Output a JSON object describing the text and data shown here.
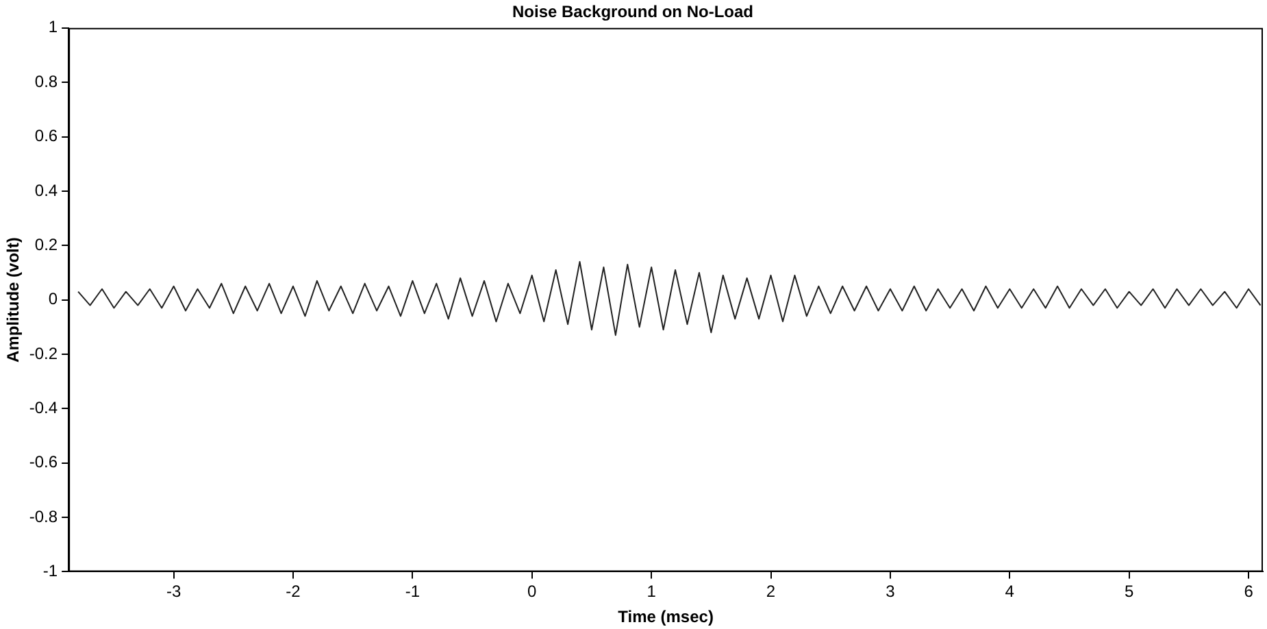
{
  "chart_data": {
    "type": "line",
    "title": "Noise Background on No-Load",
    "xlabel": "Time (msec)",
    "ylabel": "Amplitude (volt)",
    "marker": "none",
    "legend": false,
    "grid": false,
    "xlim": [
      -3.88,
      6.12
    ],
    "xticks": [
      -3,
      -2,
      -1,
      0,
      1,
      2,
      3,
      4,
      5,
      6
    ],
    "ylim": [
      -1,
      1
    ],
    "yticks": [
      -1,
      -0.8,
      -0.6,
      -0.4,
      -0.2,
      0,
      0.2,
      0.4,
      0.6,
      0.8,
      1
    ],
    "x": [
      -3.8,
      -3.7,
      -3.6,
      -3.5,
      -3.4,
      -3.3,
      -3.2,
      -3.1,
      -3.0,
      -2.9,
      -2.8,
      -2.7,
      -2.6,
      -2.5,
      -2.4,
      -2.3,
      -2.2,
      -2.1,
      -2.0,
      -1.9,
      -1.8,
      -1.7,
      -1.6,
      -1.5,
      -1.4,
      -1.3,
      -1.2,
      -1.1,
      -1.0,
      -0.9,
      -0.8,
      -0.7,
      -0.6,
      -0.5,
      -0.4,
      -0.3,
      -0.2,
      -0.1,
      0.0,
      0.1,
      0.2,
      0.3,
      0.4,
      0.5,
      0.6,
      0.7,
      0.8,
      0.9,
      1.0,
      1.1,
      1.2,
      1.3,
      1.4,
      1.5,
      1.6,
      1.7,
      1.8,
      1.9,
      2.0,
      2.1,
      2.2,
      2.3,
      2.4,
      2.5,
      2.6,
      2.7,
      2.8,
      2.9,
      3.0,
      3.1,
      3.2,
      3.3,
      3.4,
      3.5,
      3.6,
      3.7,
      3.8,
      3.9,
      4.0,
      4.1,
      4.2,
      4.3,
      4.4,
      4.5,
      4.6,
      4.7,
      4.8,
      4.9,
      5.0,
      5.1,
      5.2,
      5.3,
      5.4,
      5.5,
      5.6,
      5.7,
      5.8,
      5.9,
      6.0,
      6.1
    ],
    "series": [
      {
        "color": "#222222",
        "values": [
          0.03,
          -0.02,
          0.04,
          -0.03,
          0.03,
          -0.02,
          0.04,
          -0.03,
          0.05,
          -0.04,
          0.04,
          -0.03,
          0.06,
          -0.05,
          0.05,
          -0.04,
          0.06,
          -0.05,
          0.05,
          -0.06,
          0.07,
          -0.04,
          0.05,
          -0.05,
          0.06,
          -0.04,
          0.05,
          -0.06,
          0.07,
          -0.05,
          0.06,
          -0.07,
          0.08,
          -0.06,
          0.07,
          -0.08,
          0.06,
          -0.05,
          0.09,
          -0.08,
          0.11,
          -0.09,
          0.14,
          -0.11,
          0.12,
          -0.13,
          0.13,
          -0.1,
          0.12,
          -0.11,
          0.11,
          -0.09,
          0.1,
          -0.12,
          0.09,
          -0.07,
          0.08,
          -0.07,
          0.09,
          -0.08,
          0.09,
          -0.06,
          0.05,
          -0.05,
          0.05,
          -0.04,
          0.05,
          -0.04,
          0.04,
          -0.04,
          0.05,
          -0.04,
          0.04,
          -0.03,
          0.04,
          -0.04,
          0.05,
          -0.03,
          0.04,
          -0.03,
          0.04,
          -0.03,
          0.05,
          -0.03,
          0.04,
          -0.02,
          0.04,
          -0.03,
          0.03,
          -0.02,
          0.04,
          -0.03,
          0.04,
          -0.02,
          0.04,
          -0.02,
          0.03,
          -0.03,
          0.04,
          -0.02
        ]
      }
    ]
  }
}
